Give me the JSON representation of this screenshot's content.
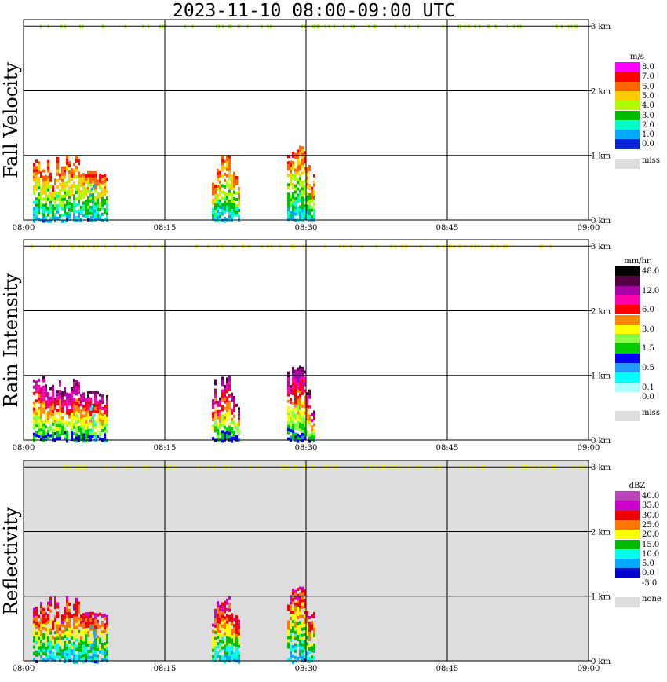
{
  "title": "2023-11-10   08:00-09:00 UTC",
  "x_ticks": [
    "08:00",
    "08:15",
    "08:30",
    "08:45",
    "09:00"
  ],
  "y_ticks": [
    "0 km",
    "1 km",
    "2 km",
    "3 km"
  ],
  "panels": [
    {
      "label": "Fall Velocity",
      "unit": "m/s",
      "background": "#ffffff",
      "legend": [
        {
          "color": "#ff00ff",
          "label": "8.0"
        },
        {
          "color": "#ff0000",
          "label": "7.0"
        },
        {
          "color": "#ff6600",
          "label": "6.0"
        },
        {
          "color": "#ffcc00",
          "label": "5.0"
        },
        {
          "color": "#aaff00",
          "label": "4.0"
        },
        {
          "color": "#00bb00",
          "label": "3.0"
        },
        {
          "color": "#00ffcc",
          "label": "2.0"
        },
        {
          "color": "#00aaff",
          "label": "1.0"
        },
        {
          "color": "#0022dd",
          "label": "0.0"
        }
      ],
      "miss_label": "miss"
    },
    {
      "label": "Rain Intensity",
      "unit": "mm/hr",
      "background": "#ffffff",
      "legend": [
        {
          "color": "#000000",
          "label": "48.0"
        },
        {
          "color": "#550044",
          "label": ""
        },
        {
          "color": "#aa00aa",
          "label": "12.0"
        },
        {
          "color": "#ff00aa",
          "label": ""
        },
        {
          "color": "#ff0000",
          "label": "6.0"
        },
        {
          "color": "#ff8800",
          "label": ""
        },
        {
          "color": "#ffff00",
          "label": "3.0"
        },
        {
          "color": "#88ff44",
          "label": ""
        },
        {
          "color": "#00cc00",
          "label": "1.5"
        },
        {
          "color": "#0000ff",
          "label": ""
        },
        {
          "color": "#2299ff",
          "label": "0.5"
        },
        {
          "color": "#00ffff",
          "label": ""
        },
        {
          "color": "#aaffff",
          "label": "0.1"
        },
        {
          "color": "#ffffff",
          "label": "0.0"
        }
      ],
      "miss_label": "miss"
    },
    {
      "label": "Reflectivity",
      "unit": "dBZ",
      "background": "#dddddd",
      "legend": [
        {
          "color": "#bb44bb",
          "label": "40.0"
        },
        {
          "color": "#cc00cc",
          "label": "35.0"
        },
        {
          "color": "#ee0000",
          "label": "30.0"
        },
        {
          "color": "#ff7700",
          "label": "25.0"
        },
        {
          "color": "#ffff00",
          "label": "20.0"
        },
        {
          "color": "#00bb00",
          "label": "15.0"
        },
        {
          "color": "#00ffee",
          "label": "10.0"
        },
        {
          "color": "#00aaff",
          "label": "5.0"
        },
        {
          "color": "#0000cc",
          "label": "0.0"
        },
        {
          "color": "#ffffff",
          "label": "-5.0"
        }
      ],
      "miss_label": "none"
    }
  ],
  "chart_data": {
    "type": "heatmap",
    "title": "2023-11-10   08:00-09:00 UTC",
    "x_range": [
      "08:00",
      "09:00"
    ],
    "y_range_km": [
      0,
      3.1
    ],
    "grid": true,
    "rain_events": [
      {
        "start": "08:01",
        "end": "08:09",
        "top_km": 1.0
      },
      {
        "start": "08:20",
        "end": "08:23",
        "top_km": 1.0
      },
      {
        "start": "08:28",
        "end": "08:31",
        "top_km": 1.15
      }
    ],
    "sparse_echo_km": 3.0
  }
}
